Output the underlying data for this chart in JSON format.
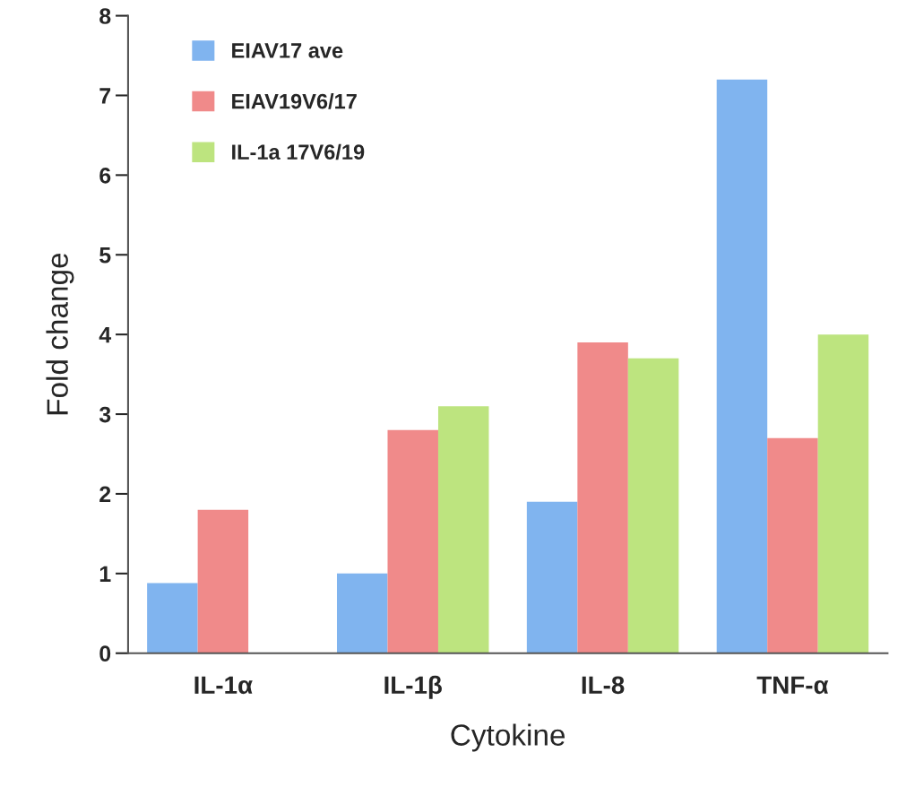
{
  "chart_data": {
    "type": "bar",
    "xlabel": "Cytokine",
    "ylabel": "Fold change",
    "categories": [
      "IL-1α",
      "IL-1β",
      "IL-8",
      "TNF-α"
    ],
    "series": [
      {
        "name": "EIAV17 ave",
        "color": "#80b4ef",
        "values": [
          0.88,
          1.0,
          1.9,
          7.2
        ]
      },
      {
        "name": "EIAV19V6/17",
        "color": "#f08a8a",
        "values": [
          1.8,
          2.8,
          3.9,
          2.7
        ]
      },
      {
        "name": "IL-1a 17V6/19",
        "color": "#bde47f",
        "values": [
          null,
          3.1,
          3.7,
          4.0
        ]
      }
    ],
    "ylim": [
      0,
      8
    ],
    "yticks": [
      0,
      1,
      2,
      3,
      4,
      5,
      6,
      7,
      8
    ],
    "grid": false,
    "legend": "top left"
  }
}
